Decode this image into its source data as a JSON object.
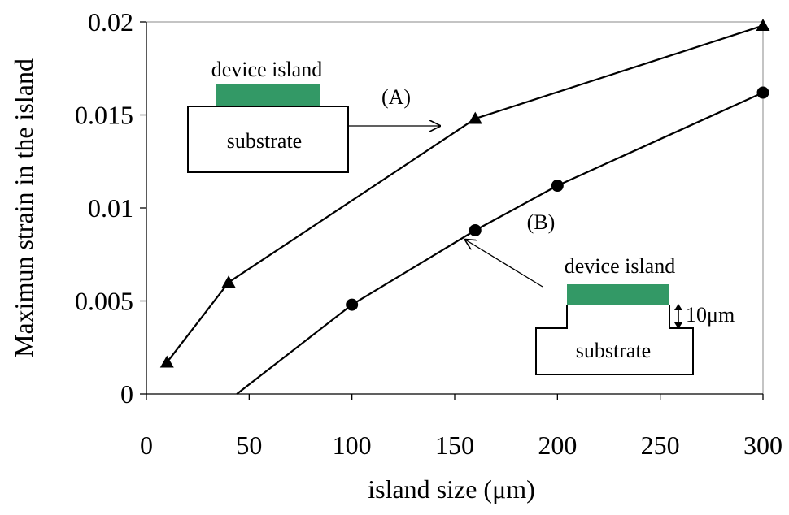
{
  "chart_data": {
    "type": "line",
    "xlabel": "island size (μm)",
    "ylabel": "Maximun strain in the island",
    "xlim": [
      0,
      300
    ],
    "ylim": [
      0,
      0.02
    ],
    "x_ticks": [
      "0",
      "50",
      "100",
      "150",
      "200",
      "250",
      "300"
    ],
    "y_ticks": [
      "0",
      "0.005",
      "0.01",
      "0.015",
      "0.02"
    ],
    "grid": false,
    "series": [
      {
        "name": "(A)",
        "marker": "triangle",
        "x": [
          10,
          40,
          160,
          300
        ],
        "y": [
          0.0017,
          0.006,
          0.0148,
          0.0198
        ]
      },
      {
        "name": "(B)",
        "marker": "circle",
        "x": [
          44,
          100,
          160,
          200,
          300
        ],
        "y": [
          0,
          0.0048,
          0.0088,
          0.0112,
          0.0162
        ],
        "marked": [
          false,
          true,
          true,
          true,
          true
        ]
      }
    ],
    "insets": {
      "a": {
        "island_label": "device island",
        "substrate_label": "substrate"
      },
      "b": {
        "island_label": "device island",
        "substrate_label": "substrate",
        "step_label": "10μm"
      }
    },
    "colors": {
      "island": "#339966",
      "line": "#000000"
    }
  }
}
